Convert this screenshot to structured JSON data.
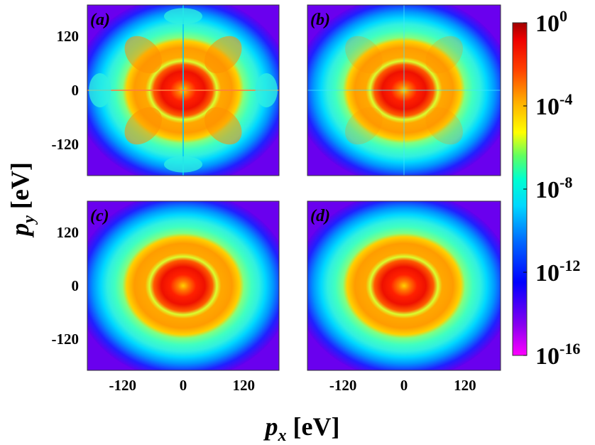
{
  "chart_data": {
    "type": "heatmap",
    "panels": [
      {
        "label": "(a)",
        "structure": "four-fold",
        "rings": [
          0,
          48,
          100,
          150
        ]
      },
      {
        "label": "(b)",
        "structure": "partial",
        "rings": [
          0,
          48,
          100,
          150
        ]
      },
      {
        "label": "(c)",
        "structure": "isotropic",
        "rings": [
          0,
          48,
          100,
          150
        ]
      },
      {
        "label": "(d)",
        "structure": "isotropic",
        "rings": [
          0,
          48,
          100,
          150
        ]
      }
    ],
    "xlabel": {
      "base": "p",
      "sub": "x",
      "unit": " [eV]"
    },
    "ylabel": {
      "base": "p",
      "sub": "y",
      "unit": " [eV]"
    },
    "xlim": [
      -190,
      190
    ],
    "ylim": [
      -190,
      190
    ],
    "xticks": [
      -120,
      0,
      120
    ],
    "yticks": [
      120,
      0,
      -120
    ],
    "colorbar": {
      "scale": "log",
      "range": [
        1e-16,
        1
      ],
      "ticks": [
        {
          "base": "10",
          "exp": "0",
          "value": 0
        },
        {
          "base": "10",
          "exp": "-4",
          "value": -4
        },
        {
          "base": "10",
          "exp": "-8",
          "value": -8
        },
        {
          "base": "10",
          "exp": "-12",
          "value": -12
        },
        {
          "base": "10",
          "exp": "-16",
          "value": -16
        }
      ],
      "colormap": [
        "#ff00ff",
        "#7000ee",
        "#0000ff",
        "#0066ff",
        "#00e0ff",
        "#00ffc0",
        "#40ff40",
        "#ffff00",
        "#ffb000",
        "#ff4000",
        "#ee0000",
        "#a00000"
      ]
    }
  }
}
